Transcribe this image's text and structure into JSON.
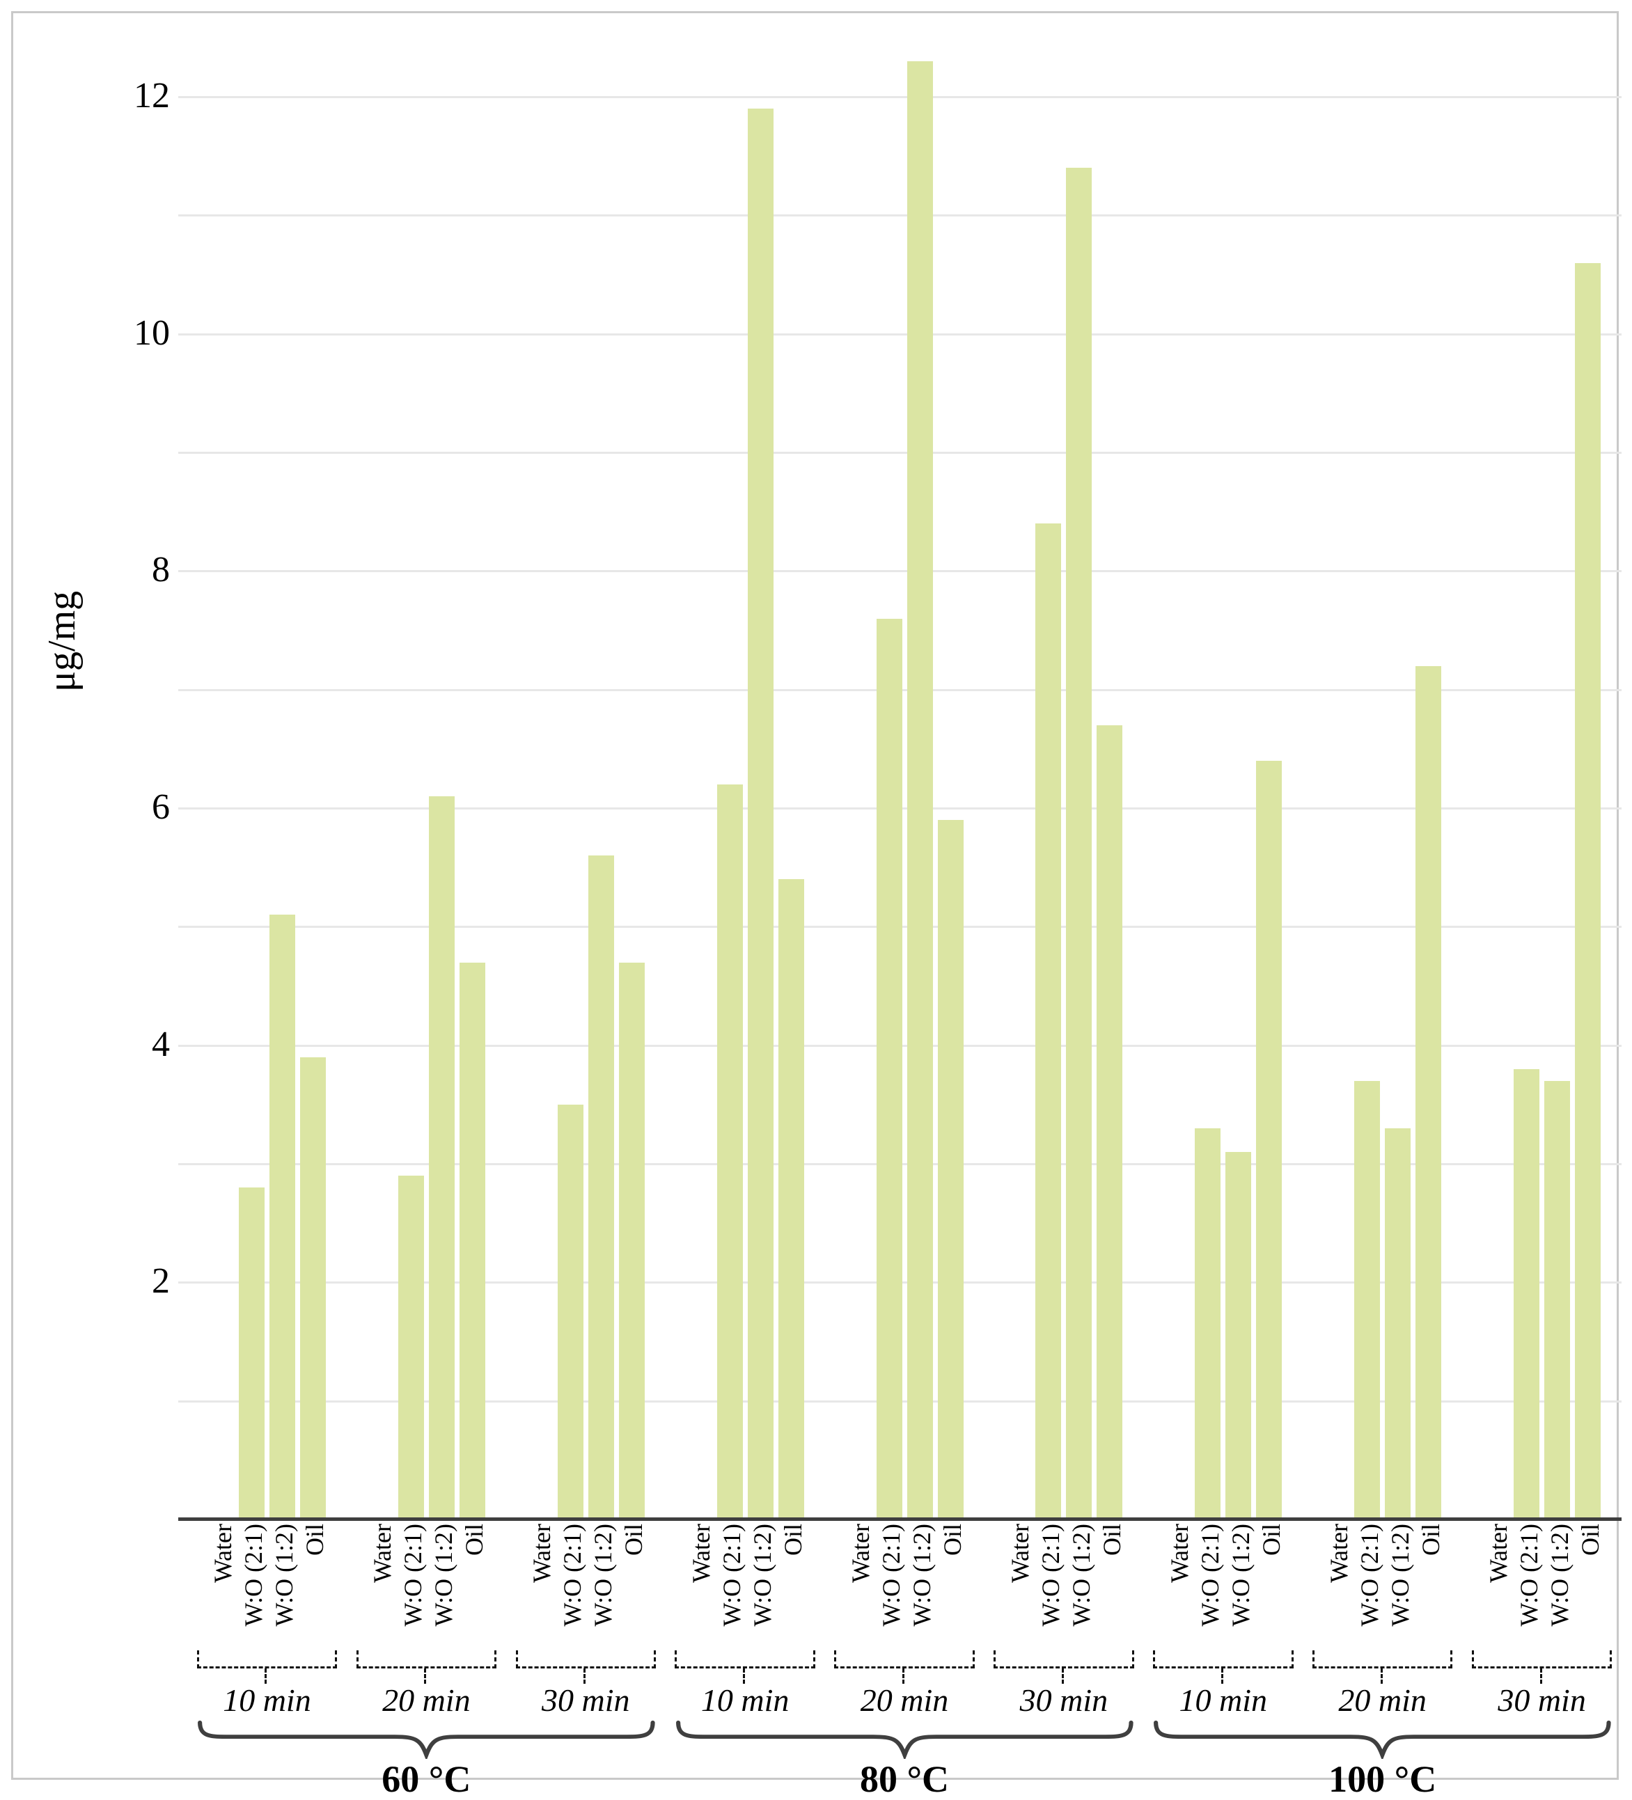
{
  "chart_data": {
    "type": "bar",
    "title": "",
    "ylabel": "μg/mg",
    "xlabel": "",
    "ylim": [
      0,
      12.5
    ],
    "y_major_tick_labels": [
      2,
      4,
      6,
      8,
      10,
      12
    ],
    "gridline_step": 1,
    "legend": "none",
    "grid": "horizontal",
    "categories": [
      "Water",
      "W:O (2:1)",
      "W:O (1:2)",
      "Oil"
    ],
    "sections": [
      {
        "temp": "60 °C",
        "times": [
          {
            "label": "10 min",
            "values": [
              0,
              2.8,
              5.1,
              3.9
            ]
          },
          {
            "label": "20 min",
            "values": [
              0,
              2.9,
              6.1,
              4.7
            ]
          },
          {
            "label": "30 min",
            "values": [
              0,
              3.5,
              5.6,
              4.7
            ]
          }
        ]
      },
      {
        "temp": "80 °C",
        "times": [
          {
            "label": "10 min",
            "values": [
              0,
              6.2,
              11.9,
              5.4
            ]
          },
          {
            "label": "20 min",
            "values": [
              0,
              7.6,
              12.3,
              5.9
            ]
          },
          {
            "label": "30 min",
            "values": [
              0,
              8.4,
              11.4,
              6.7
            ]
          }
        ]
      },
      {
        "temp": "100 °C",
        "times": [
          {
            "label": "10 min",
            "values": [
              0,
              3.3,
              3.1,
              6.4
            ]
          },
          {
            "label": "20 min",
            "values": [
              0,
              3.7,
              3.3,
              7.2
            ]
          },
          {
            "label": "30 min",
            "values": [
              0,
              3.8,
              3.7,
              10.6
            ]
          }
        ]
      }
    ],
    "colors": {
      "bar": "#dbe5a3",
      "gridline": "#e7e7e7",
      "axis_line": "#3f3f3f",
      "bracket": "#111111",
      "frame_border": "#c9c9c9",
      "text": "#000000"
    }
  }
}
